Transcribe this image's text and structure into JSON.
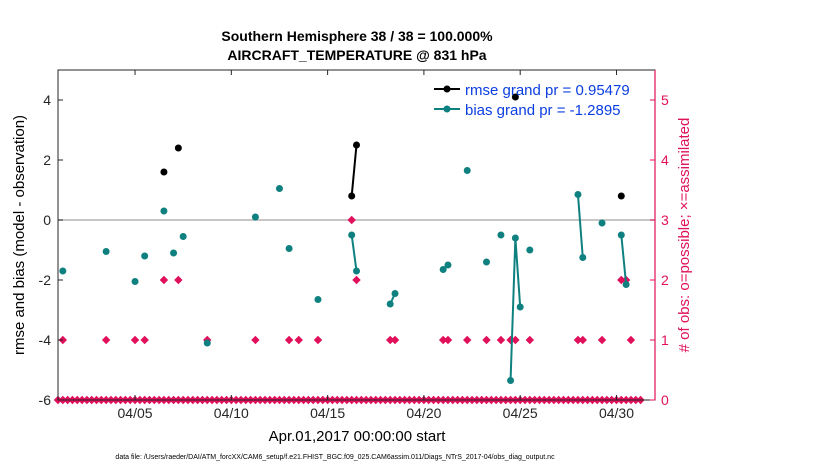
{
  "chart_data": {
    "type": "line",
    "title": "Southern Hemisphere 38 / 38 = 100.000%",
    "subtitle": "AIRCRAFT_TEMPERATURE @ 831 hPa",
    "xlabel": "Apr.01,2017 00:00:00 start",
    "ylabel": "rmse and bias (model - observation)",
    "ylabel_right": "# of obs: o=possible; ×=assimilated",
    "footnote": "data file: /Users/raeder/DAI/ATM_forcXX/CAM6_setup/f.e21.FHIST_BGC.f09_025.CAM6assim.011/Diags_NTrS_2017-04/obs_diag_output.nc",
    "xlim": [
      0,
      31
    ],
    "ylim": [
      -6,
      5
    ],
    "ylim_right": [
      0,
      5.5
    ],
    "x_ticks": [
      4,
      9,
      14,
      19,
      24,
      29
    ],
    "x_tick_labels": [
      "04/05",
      "04/10",
      "04/15",
      "04/20",
      "04/25",
      "04/30"
    ],
    "y_ticks": [
      -6,
      -4,
      -2,
      0,
      2,
      4
    ],
    "y_tick_labels": [
      "-6",
      "-4",
      "-2",
      "0",
      "2",
      "4"
    ],
    "y_right_ticks": [
      0,
      1,
      2,
      3,
      4,
      5
    ],
    "y_right_tick_labels": [
      "0",
      "1",
      "2",
      "3",
      "4",
      "5"
    ],
    "zero_line": 0,
    "colors": {
      "rmse": "#000000",
      "bias": "#0f8080",
      "obs": "#e0105a",
      "axis_right": "#e0105a",
      "zero": "#b3b3b3"
    },
    "series": [
      {
        "name": "rmse",
        "legend": "rmse grand pr = 0.95479",
        "segments": [
          [
            [
              5.5,
              1.6
            ]
          ],
          [
            [
              6.25,
              2.4
            ]
          ],
          [
            [
              15.25,
              0.8
            ],
            [
              15.5,
              2.5
            ]
          ],
          [
            [
              23.75,
              4.1
            ]
          ],
          [
            [
              29.25,
              0.8
            ]
          ]
        ]
      },
      {
        "name": "bias",
        "legend": "bias grand pr = -1.2895",
        "segments": [
          [
            [
              0.25,
              -1.7
            ]
          ],
          [
            [
              2.5,
              -1.05
            ]
          ],
          [
            [
              4.0,
              -2.05
            ]
          ],
          [
            [
              4.5,
              -1.2
            ]
          ],
          [
            [
              5.5,
              0.3
            ]
          ],
          [
            [
              6.0,
              -1.1
            ]
          ],
          [
            [
              6.5,
              -0.55
            ]
          ],
          [
            [
              7.75,
              -4.1
            ]
          ],
          [
            [
              10.25,
              0.1
            ]
          ],
          [
            [
              11.5,
              1.05
            ]
          ],
          [
            [
              12.0,
              -0.95
            ]
          ],
          [
            [
              13.5,
              -2.65
            ]
          ],
          [
            [
              15.25,
              -0.5
            ],
            [
              15.5,
              -1.7
            ]
          ],
          [
            [
              17.25,
              -2.8
            ],
            [
              17.5,
              -2.45
            ]
          ],
          [
            [
              20.0,
              -1.65
            ],
            [
              20.25,
              -1.5
            ]
          ],
          [
            [
              21.25,
              1.65
            ]
          ],
          [
            [
              22.25,
              -1.4
            ]
          ],
          [
            [
              23.0,
              -0.5
            ]
          ],
          [
            [
              23.5,
              -5.35
            ],
            [
              23.75,
              -0.6
            ],
            [
              24.0,
              -2.9
            ]
          ],
          [
            [
              24.5,
              -1.0
            ]
          ],
          [
            [
              27.0,
              0.85
            ],
            [
              27.25,
              -1.25
            ]
          ],
          [
            [
              28.25,
              -0.1
            ]
          ],
          [
            [
              29.25,
              -0.5
            ],
            [
              29.5,
              -2.15
            ]
          ]
        ]
      }
    ],
    "obs_counts": {
      "name": "# of obs",
      "possible": [
        [
          0,
          0
        ],
        [
          0.25,
          0
        ],
        [
          0.5,
          0
        ],
        [
          0.75,
          0
        ],
        [
          1,
          0
        ],
        [
          1.25,
          0
        ],
        [
          1.5,
          0
        ],
        [
          1.75,
          0
        ],
        [
          2,
          0
        ],
        [
          2.25,
          0
        ],
        [
          2.5,
          0
        ],
        [
          2.75,
          0
        ],
        [
          3,
          0
        ],
        [
          3.25,
          0
        ],
        [
          3.5,
          0
        ],
        [
          3.75,
          0
        ],
        [
          4,
          0
        ],
        [
          4.25,
          0
        ],
        [
          4.5,
          0
        ],
        [
          4.75,
          0
        ],
        [
          5,
          0
        ],
        [
          5.25,
          0
        ],
        [
          5.5,
          0
        ],
        [
          5.75,
          0
        ],
        [
          6,
          0
        ],
        [
          6.25,
          0
        ],
        [
          6.5,
          0
        ],
        [
          6.75,
          0
        ],
        [
          7,
          0
        ],
        [
          7.25,
          0
        ],
        [
          7.5,
          0
        ],
        [
          7.75,
          0
        ],
        [
          8,
          0
        ],
        [
          8.25,
          0
        ],
        [
          8.5,
          0
        ],
        [
          8.75,
          0
        ],
        [
          9,
          0
        ],
        [
          9.25,
          0
        ],
        [
          9.5,
          0
        ],
        [
          9.75,
          0
        ],
        [
          10,
          0
        ],
        [
          10.25,
          0
        ],
        [
          10.5,
          0
        ],
        [
          10.75,
          0
        ],
        [
          11,
          0
        ],
        [
          11.25,
          0
        ],
        [
          11.5,
          0
        ],
        [
          11.75,
          0
        ],
        [
          12,
          0
        ],
        [
          12.25,
          0
        ],
        [
          12.5,
          0
        ],
        [
          12.75,
          0
        ],
        [
          13,
          0
        ],
        [
          13.25,
          0
        ],
        [
          13.5,
          0
        ],
        [
          13.75,
          0
        ],
        [
          14,
          0
        ],
        [
          14.25,
          0
        ],
        [
          14.5,
          0
        ],
        [
          14.75,
          0
        ],
        [
          15,
          0
        ],
        [
          15.25,
          0
        ],
        [
          15.5,
          0
        ],
        [
          15.75,
          0
        ],
        [
          16,
          0
        ],
        [
          16.25,
          0
        ],
        [
          16.5,
          0
        ],
        [
          16.75,
          0
        ],
        [
          17,
          0
        ],
        [
          17.25,
          0
        ],
        [
          17.5,
          0
        ],
        [
          17.75,
          0
        ],
        [
          18,
          0
        ],
        [
          18.25,
          0
        ],
        [
          18.5,
          0
        ],
        [
          18.75,
          0
        ],
        [
          19,
          0
        ],
        [
          19.25,
          0
        ],
        [
          19.5,
          0
        ],
        [
          19.75,
          0
        ],
        [
          20,
          0
        ],
        [
          20.25,
          0
        ],
        [
          20.5,
          0
        ],
        [
          20.75,
          0
        ],
        [
          21,
          0
        ],
        [
          21.25,
          0
        ],
        [
          21.5,
          0
        ],
        [
          21.75,
          0
        ],
        [
          22,
          0
        ],
        [
          22.25,
          0
        ],
        [
          22.5,
          0
        ],
        [
          22.75,
          0
        ],
        [
          23,
          0
        ],
        [
          23.25,
          0
        ],
        [
          23.5,
          0
        ],
        [
          23.75,
          0
        ],
        [
          24,
          0
        ],
        [
          24.25,
          0
        ],
        [
          24.5,
          0
        ],
        [
          24.75,
          0
        ],
        [
          25,
          0
        ],
        [
          25.25,
          0
        ],
        [
          25.5,
          0
        ],
        [
          25.75,
          0
        ],
        [
          26,
          0
        ],
        [
          26.25,
          0
        ],
        [
          26.5,
          0
        ],
        [
          26.75,
          0
        ],
        [
          27,
          0
        ],
        [
          27.25,
          0
        ],
        [
          27.5,
          0
        ],
        [
          27.75,
          0
        ],
        [
          28,
          0
        ],
        [
          28.25,
          0
        ],
        [
          28.5,
          0
        ],
        [
          28.75,
          0
        ],
        [
          29,
          0
        ],
        [
          29.25,
          0
        ],
        [
          29.5,
          0
        ],
        [
          29.75,
          0
        ],
        [
          30,
          0
        ],
        [
          30.25,
          0
        ],
        [
          0.25,
          1
        ],
        [
          2.5,
          1
        ],
        [
          4.0,
          1
        ],
        [
          4.5,
          1
        ],
        [
          7.75,
          1
        ],
        [
          10.25,
          1
        ],
        [
          12.0,
          1
        ],
        [
          12.5,
          1
        ],
        [
          13.5,
          1
        ],
        [
          17.25,
          1
        ],
        [
          17.5,
          1
        ],
        [
          20.0,
          1
        ],
        [
          20.25,
          1
        ],
        [
          21.25,
          1
        ],
        [
          22.25,
          1
        ],
        [
          23.0,
          1
        ],
        [
          23.5,
          1
        ],
        [
          23.75,
          1
        ],
        [
          24.5,
          1
        ],
        [
          27.0,
          1
        ],
        [
          27.25,
          1
        ],
        [
          28.25,
          1
        ],
        [
          29.75,
          1
        ],
        [
          5.5,
          2
        ],
        [
          6.25,
          2
        ],
        [
          15.5,
          2
        ],
        [
          29.25,
          2
        ],
        [
          29.5,
          2
        ],
        [
          15.25,
          3
        ]
      ]
    }
  }
}
